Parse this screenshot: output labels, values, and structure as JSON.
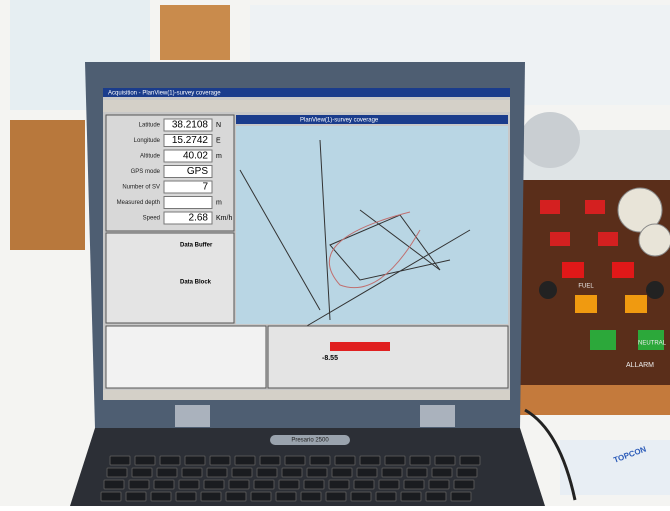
{
  "window": {
    "title": "Acquisition - PlanView(1)-survey coverage",
    "map_title": "PlanView(1)-survey coverage"
  },
  "instruments": [
    {
      "label": "Latitude",
      "value": "38.2108",
      "unit": "N"
    },
    {
      "label": "Longitude",
      "value": "15.2742",
      "unit": "E"
    },
    {
      "label": "Altitude",
      "value": "40.02",
      "unit": "m"
    },
    {
      "label": "GPS mode",
      "value": "GPS"
    },
    {
      "label": "Number of SV",
      "value": "7"
    },
    {
      "label": "Measured depth",
      "unit": "m"
    },
    {
      "label": "Speed",
      "value": "2.68",
      "unit": "Km/h"
    }
  ],
  "panels": {
    "buffer": "Data Buffer",
    "block": "Data Block"
  },
  "gauge": {
    "value": "-8.55"
  },
  "laptop": {
    "brand": "Presario 2500"
  },
  "console": {
    "fuel": "FUEL",
    "neutral": "NEUTRAL",
    "alarm": "ALLARM"
  },
  "accessory": {
    "brand": "TOPCON"
  }
}
